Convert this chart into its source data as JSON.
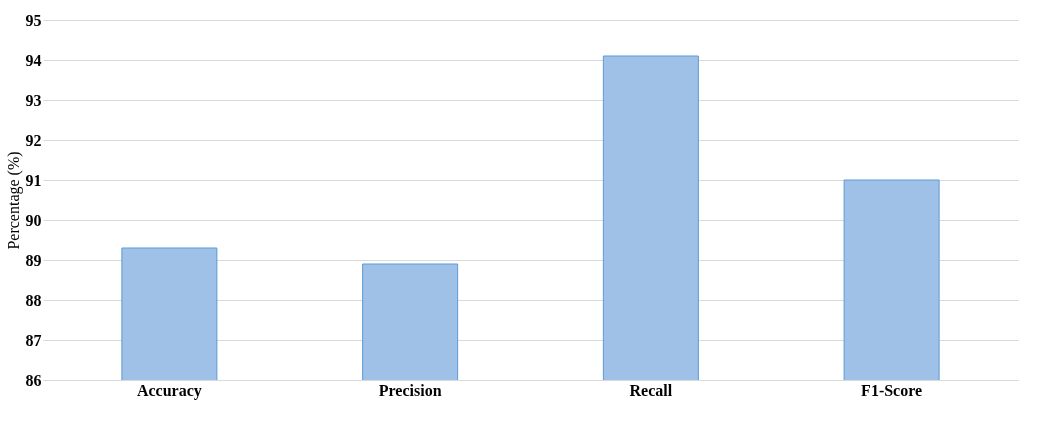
{
  "chart_data": {
    "type": "bar",
    "ylabel": "Percentage (%)",
    "categories": [
      "Accuracy",
      "Precision",
      "Recall",
      "F1-Score"
    ],
    "values": [
      89.3,
      88.9,
      94.1,
      91.0
    ],
    "color": "#9fc0e7",
    "ylim": [
      86,
      95
    ],
    "yticks": [
      86,
      87,
      88,
      89,
      90,
      91,
      92,
      93,
      94,
      95
    ],
    "grid": "y"
  }
}
